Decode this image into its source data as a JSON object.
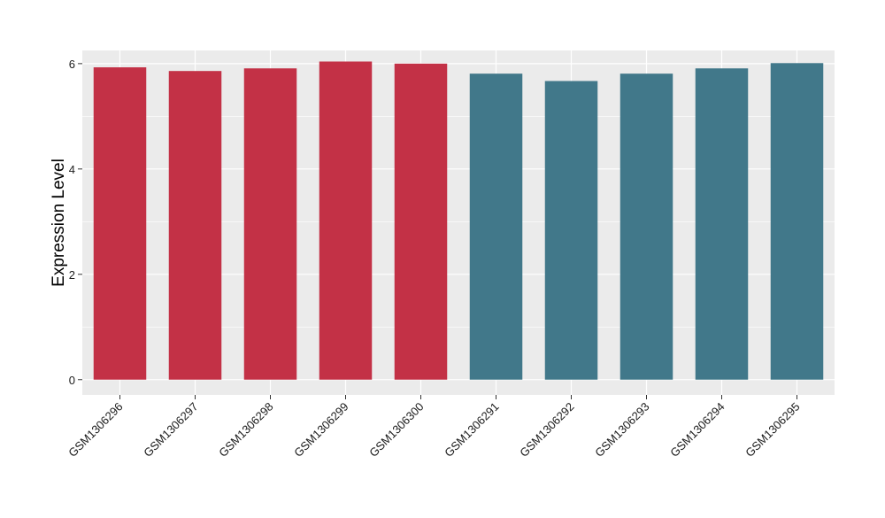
{
  "chart_data": {
    "type": "bar",
    "title": "",
    "xlabel": "",
    "ylabel": "Expression Level",
    "ylim": [
      -0.29,
      6.25
    ],
    "yticks": [
      0,
      2,
      4,
      6
    ],
    "grid": true,
    "categories": [
      "GSM1306296",
      "GSM1306297",
      "GSM1306298",
      "GSM1306299",
      "GSM1306300",
      "GSM1306291",
      "GSM1306292",
      "GSM1306293",
      "GSM1306294",
      "GSM1306295"
    ],
    "values": [
      5.93,
      5.86,
      5.91,
      6.04,
      6.0,
      5.81,
      5.67,
      5.81,
      5.91,
      6.01
    ],
    "bar_colors": [
      "#c33146",
      "#c33146",
      "#c33146",
      "#c33146",
      "#c33146",
      "#41788a",
      "#41788a",
      "#41788a",
      "#41788a",
      "#41788a"
    ],
    "colors": {
      "panel_background": "#ebebeb",
      "grid_major": "#ffffff",
      "axis_text": "#000000",
      "group_1": "#c33146",
      "group_2": "#41788a"
    }
  }
}
